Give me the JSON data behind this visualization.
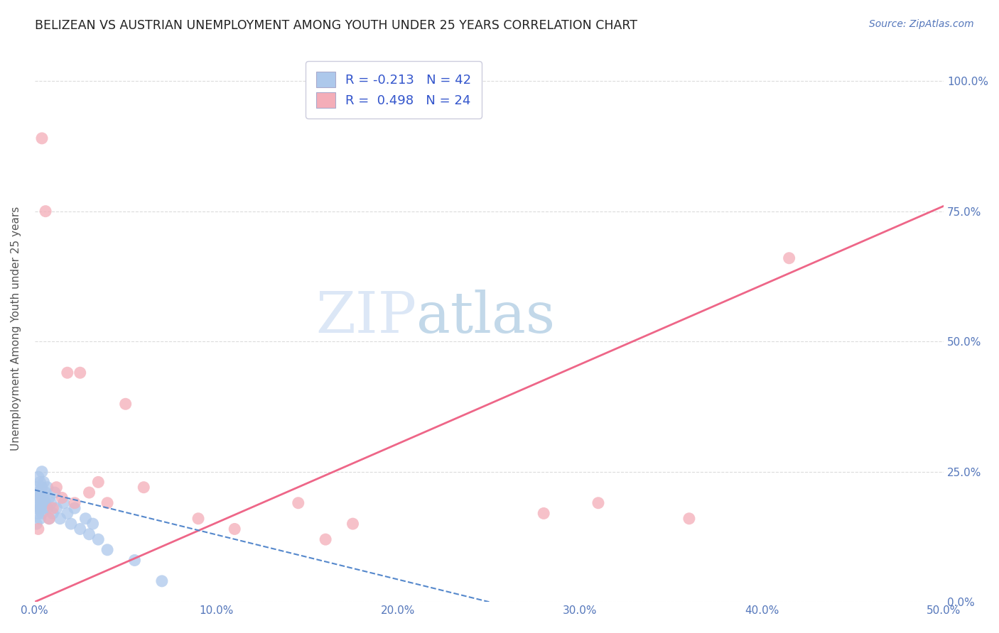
{
  "title": "BELIZEAN VS AUSTRIAN UNEMPLOYMENT AMONG YOUTH UNDER 25 YEARS CORRELATION CHART",
  "source": "Source: ZipAtlas.com",
  "xlabel_ticks": [
    "0.0%",
    "10.0%",
    "20.0%",
    "30.0%",
    "40.0%",
    "50.0%"
  ],
  "ylabel_ticks": [
    "0.0%",
    "25.0%",
    "50.0%",
    "75.0%",
    "100.0%"
  ],
  "xlim": [
    0.0,
    0.5
  ],
  "ylim": [
    0.0,
    1.05
  ],
  "ylabel": "Unemployment Among Youth under 25 years",
  "watermark_zip": "ZIP",
  "watermark_atlas": "atlas",
  "legend_r1": "R = -0.213",
  "legend_n1": "N = 42",
  "legend_r2": "R =  0.498",
  "legend_n2": "N = 24",
  "belizean_color": "#adc8eb",
  "austrian_color": "#f4adb8",
  "belizean_line_color": "#5588cc",
  "austrian_line_color": "#ee6688",
  "background_color": "#ffffff",
  "grid_color": "#cccccc",
  "belizean_x": [
    0.001,
    0.001,
    0.001,
    0.002,
    0.002,
    0.002,
    0.002,
    0.002,
    0.003,
    0.003,
    0.003,
    0.003,
    0.004,
    0.004,
    0.004,
    0.004,
    0.005,
    0.005,
    0.005,
    0.006,
    0.006,
    0.007,
    0.007,
    0.008,
    0.008,
    0.009,
    0.01,
    0.011,
    0.012,
    0.014,
    0.016,
    0.018,
    0.02,
    0.022,
    0.025,
    0.028,
    0.03,
    0.032,
    0.035,
    0.04,
    0.055,
    0.07
  ],
  "belizean_y": [
    0.18,
    0.15,
    0.22,
    0.2,
    0.24,
    0.17,
    0.21,
    0.19,
    0.23,
    0.16,
    0.2,
    0.18,
    0.22,
    0.19,
    0.25,
    0.17,
    0.2,
    0.18,
    0.23,
    0.19,
    0.21,
    0.18,
    0.22,
    0.16,
    0.2,
    0.19,
    0.17,
    0.21,
    0.18,
    0.16,
    0.19,
    0.17,
    0.15,
    0.18,
    0.14,
    0.16,
    0.13,
    0.15,
    0.12,
    0.1,
    0.08,
    0.04
  ],
  "austrian_x": [
    0.002,
    0.004,
    0.006,
    0.008,
    0.01,
    0.012,
    0.015,
    0.018,
    0.022,
    0.025,
    0.03,
    0.035,
    0.04,
    0.05,
    0.06,
    0.09,
    0.11,
    0.145,
    0.16,
    0.175,
    0.28,
    0.31,
    0.36,
    0.415
  ],
  "austrian_y": [
    0.14,
    0.89,
    0.75,
    0.16,
    0.18,
    0.22,
    0.2,
    0.44,
    0.19,
    0.44,
    0.21,
    0.23,
    0.19,
    0.38,
    0.22,
    0.16,
    0.14,
    0.19,
    0.12,
    0.15,
    0.17,
    0.19,
    0.16,
    0.66
  ],
  "austrian_line_x0": 0.0,
  "austrian_line_y0": 0.0,
  "austrian_line_x1": 0.5,
  "austrian_line_y1": 0.76,
  "belizean_line_x0": 0.0,
  "belizean_line_y0": 0.215,
  "belizean_line_x1": 0.25,
  "belizean_line_y1": 0.0
}
